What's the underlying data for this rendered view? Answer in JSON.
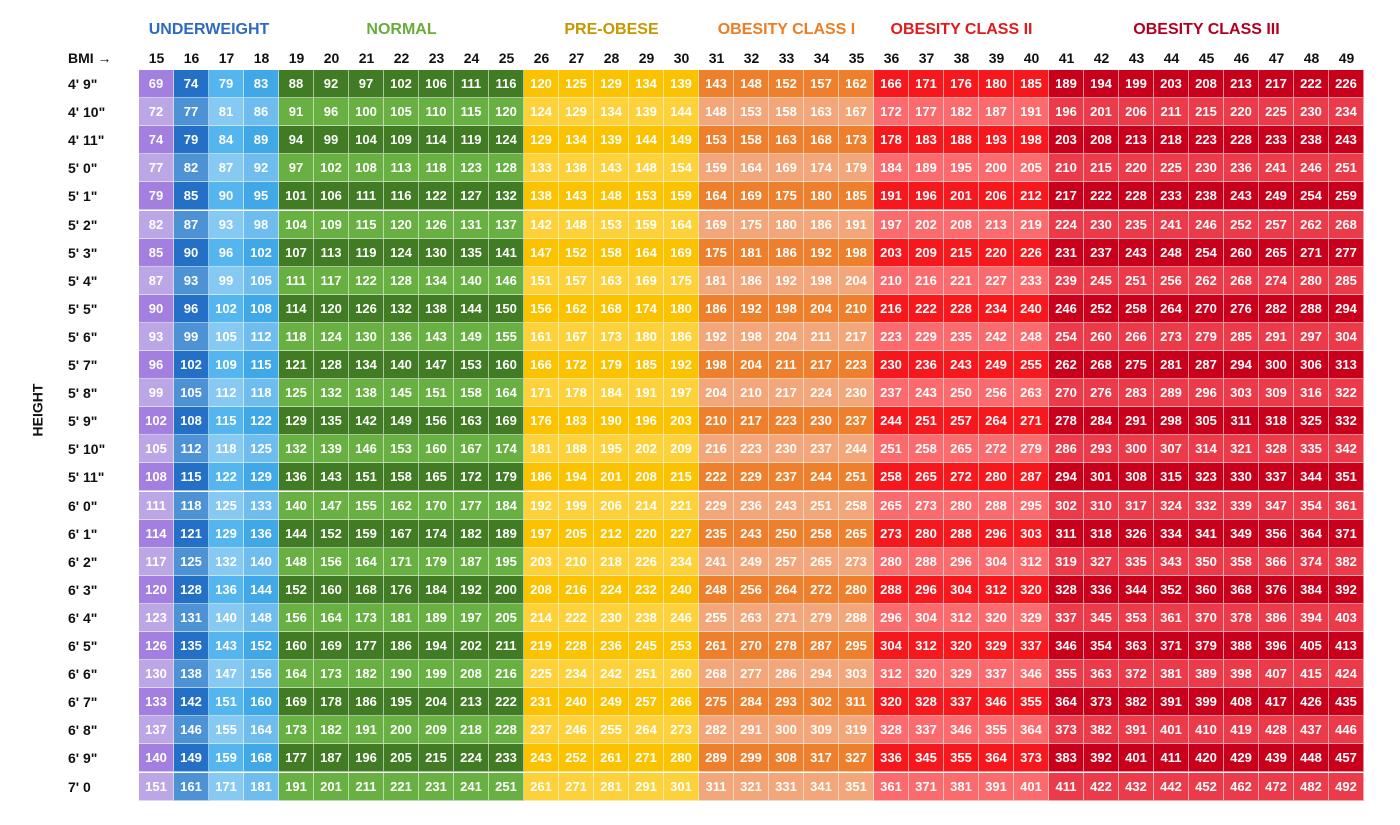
{
  "chart_data": {
    "type": "table",
    "bmi_label": "BMI →",
    "height_label": "HEIGHT",
    "bmi_values": [
      15,
      16,
      17,
      18,
      19,
      20,
      21,
      22,
      23,
      24,
      25,
      26,
      27,
      28,
      29,
      30,
      31,
      32,
      33,
      34,
      35,
      36,
      37,
      38,
      39,
      40,
      41,
      42,
      43,
      44,
      45,
      46,
      47,
      48,
      49
    ],
    "categories": [
      {
        "name": "UNDERWEIGHT",
        "bmi_from": 15,
        "bmi_to": 18,
        "color": "#2e6bbf"
      },
      {
        "name": "NORMAL",
        "bmi_from": 19,
        "bmi_to": 25,
        "color": "#6aab3c"
      },
      {
        "name": "PRE-OBESE",
        "bmi_from": 26,
        "bmi_to": 30,
        "color": "#c59800"
      },
      {
        "name": "OBESITY CLASS I",
        "bmi_from": 31,
        "bmi_to": 35,
        "color": "#ee7d22"
      },
      {
        "name": "OBESITY CLASS II",
        "bmi_from": 36,
        "bmi_to": 40,
        "color": "#e31a1c"
      },
      {
        "name": "OBESITY CLASS III",
        "bmi_from": 41,
        "bmi_to": 49,
        "color": "#b10021"
      }
    ],
    "column_colors": {
      "odd_rows": [
        "#a37fdf",
        "#2370c6",
        "#55b6ef",
        "#40a8e6",
        "#417b24",
        "#417b24",
        "#417b24",
        "#417b24",
        "#417b24",
        "#417b24",
        "#417b24",
        "#fbc200",
        "#fbc200",
        "#fbc200",
        "#fbc200",
        "#fbc200",
        "#ee7f2d",
        "#ee7f2d",
        "#ee7f2d",
        "#ee7f2d",
        "#ee7f2d",
        "#f7181d",
        "#f7181d",
        "#f7181d",
        "#f7181d",
        "#f7181d",
        "#c9001b",
        "#c9001b",
        "#c9001b",
        "#c9001b",
        "#c9001b",
        "#c9001b",
        "#c9001b",
        "#c9001b",
        "#c9001b"
      ],
      "even_rows": [
        "#bca7e6",
        "#4e92d6",
        "#86c9f2",
        "#6fbcee",
        "#69b043",
        "#69b043",
        "#69b043",
        "#69b043",
        "#69b043",
        "#69b043",
        "#69b043",
        "#fdd13a",
        "#fdd13a",
        "#fdd13a",
        "#fdd13a",
        "#fdd13a",
        "#f3a679",
        "#f3a679",
        "#f3a679",
        "#f3a679",
        "#f3a679",
        "#fb6b6e",
        "#fb6b6e",
        "#fb6b6e",
        "#fb6b6e",
        "#fb6b6e",
        "#eb3b4a",
        "#eb3b4a",
        "#eb3b4a",
        "#eb3b4a",
        "#eb3b4a",
        "#eb3b4a",
        "#eb3b4a",
        "#eb3b4a",
        "#eb3b4a"
      ]
    },
    "rows": [
      {
        "height": "4' 9\"",
        "weights": [
          69,
          74,
          79,
          83,
          88,
          92,
          97,
          102,
          106,
          111,
          116,
          120,
          125,
          129,
          134,
          139,
          143,
          148,
          152,
          157,
          162,
          166,
          171,
          176,
          180,
          185,
          189,
          194,
          199,
          203,
          208,
          213,
          217,
          222,
          226
        ]
      },
      {
        "height": "4' 10\"",
        "weights": [
          72,
          77,
          81,
          86,
          91,
          96,
          100,
          105,
          110,
          115,
          120,
          124,
          129,
          134,
          139,
          144,
          148,
          153,
          158,
          163,
          167,
          172,
          177,
          182,
          187,
          191,
          196,
          201,
          206,
          211,
          215,
          220,
          225,
          230,
          234
        ]
      },
      {
        "height": "4' 11\"",
        "weights": [
          74,
          79,
          84,
          89,
          94,
          99,
          104,
          109,
          114,
          119,
          124,
          129,
          134,
          139,
          144,
          149,
          153,
          158,
          163,
          168,
          173,
          178,
          183,
          188,
          193,
          198,
          203,
          208,
          213,
          218,
          223,
          228,
          233,
          238,
          243
        ]
      },
      {
        "height": "5' 0\"",
        "weights": [
          77,
          82,
          87,
          92,
          97,
          102,
          108,
          113,
          118,
          123,
          128,
          133,
          138,
          143,
          148,
          154,
          159,
          164,
          169,
          174,
          179,
          184,
          189,
          195,
          200,
          205,
          210,
          215,
          220,
          225,
          230,
          236,
          241,
          246,
          251
        ]
      },
      {
        "height": "5' 1\"",
        "weights": [
          79,
          85,
          90,
          95,
          101,
          106,
          111,
          116,
          122,
          127,
          132,
          138,
          143,
          148,
          153,
          159,
          164,
          169,
          175,
          180,
          185,
          191,
          196,
          201,
          206,
          212,
          217,
          222,
          228,
          233,
          238,
          243,
          249,
          254,
          259
        ]
      },
      {
        "height": "5' 2\"",
        "weights": [
          82,
          87,
          93,
          98,
          104,
          109,
          115,
          120,
          126,
          131,
          137,
          142,
          148,
          153,
          159,
          164,
          169,
          175,
          180,
          186,
          191,
          197,
          202,
          208,
          213,
          219,
          224,
          230,
          235,
          241,
          246,
          252,
          257,
          262,
          268
        ]
      },
      {
        "height": "5' 3\"",
        "weights": [
          85,
          90,
          96,
          102,
          107,
          113,
          119,
          124,
          130,
          135,
          141,
          147,
          152,
          158,
          164,
          169,
          175,
          181,
          186,
          192,
          198,
          203,
          209,
          215,
          220,
          226,
          231,
          237,
          243,
          248,
          254,
          260,
          265,
          271,
          277
        ]
      },
      {
        "height": "5' 4\"",
        "weights": [
          87,
          93,
          99,
          105,
          111,
          117,
          122,
          128,
          134,
          140,
          146,
          151,
          157,
          163,
          169,
          175,
          181,
          186,
          192,
          198,
          204,
          210,
          216,
          221,
          227,
          233,
          239,
          245,
          251,
          256,
          262,
          268,
          274,
          280,
          285
        ]
      },
      {
        "height": "5' 5\"",
        "weights": [
          90,
          96,
          102,
          108,
          114,
          120,
          126,
          132,
          138,
          144,
          150,
          156,
          162,
          168,
          174,
          180,
          186,
          192,
          198,
          204,
          210,
          216,
          222,
          228,
          234,
          240,
          246,
          252,
          258,
          264,
          270,
          276,
          282,
          288,
          294
        ]
      },
      {
        "height": "5' 6\"",
        "weights": [
          93,
          99,
          105,
          112,
          118,
          124,
          130,
          136,
          143,
          149,
          155,
          161,
          167,
          173,
          180,
          186,
          192,
          198,
          204,
          211,
          217,
          223,
          229,
          235,
          242,
          248,
          254,
          260,
          266,
          273,
          279,
          285,
          291,
          297,
          304
        ]
      },
      {
        "height": "5' 7\"",
        "weights": [
          96,
          102,
          109,
          115,
          121,
          128,
          134,
          140,
          147,
          153,
          160,
          166,
          172,
          179,
          185,
          192,
          198,
          204,
          211,
          217,
          223,
          230,
          236,
          243,
          249,
          255,
          262,
          268,
          275,
          281,
          287,
          294,
          300,
          306,
          313
        ]
      },
      {
        "height": "5' 8\"",
        "weights": [
          99,
          105,
          112,
          118,
          125,
          132,
          138,
          145,
          151,
          158,
          164,
          171,
          178,
          184,
          191,
          197,
          204,
          210,
          217,
          224,
          230,
          237,
          243,
          250,
          256,
          263,
          270,
          276,
          283,
          289,
          296,
          303,
          309,
          316,
          322
        ]
      },
      {
        "height": "5' 9\"",
        "weights": [
          102,
          108,
          115,
          122,
          129,
          135,
          142,
          149,
          156,
          163,
          169,
          176,
          183,
          190,
          196,
          203,
          210,
          217,
          223,
          230,
          237,
          244,
          251,
          257,
          264,
          271,
          278,
          284,
          291,
          298,
          305,
          311,
          318,
          325,
          332
        ]
      },
      {
        "height": "5' 10\"",
        "weights": [
          105,
          112,
          118,
          125,
          132,
          139,
          146,
          153,
          160,
          167,
          174,
          181,
          188,
          195,
          202,
          209,
          216,
          223,
          230,
          237,
          244,
          251,
          258,
          265,
          272,
          279,
          286,
          293,
          300,
          307,
          314,
          321,
          328,
          335,
          342
        ]
      },
      {
        "height": "5' 11\"",
        "weights": [
          108,
          115,
          122,
          129,
          136,
          143,
          151,
          158,
          165,
          172,
          179,
          186,
          194,
          201,
          208,
          215,
          222,
          229,
          237,
          244,
          251,
          258,
          265,
          272,
          280,
          287,
          294,
          301,
          308,
          315,
          323,
          330,
          337,
          344,
          351
        ]
      },
      {
        "height": "6' 0\"",
        "weights": [
          111,
          118,
          125,
          133,
          140,
          147,
          155,
          162,
          170,
          177,
          184,
          192,
          199,
          206,
          214,
          221,
          229,
          236,
          243,
          251,
          258,
          265,
          273,
          280,
          288,
          295,
          302,
          310,
          317,
          324,
          332,
          339,
          347,
          354,
          361
        ]
      },
      {
        "height": "6' 1\"",
        "weights": [
          114,
          121,
          129,
          136,
          144,
          152,
          159,
          167,
          174,
          182,
          189,
          197,
          205,
          212,
          220,
          227,
          235,
          243,
          250,
          258,
          265,
          273,
          280,
          288,
          296,
          303,
          311,
          318,
          326,
          334,
          341,
          349,
          356,
          364,
          371
        ]
      },
      {
        "height": "6' 2\"",
        "weights": [
          117,
          125,
          132,
          140,
          148,
          156,
          164,
          171,
          179,
          187,
          195,
          203,
          210,
          218,
          226,
          234,
          241,
          249,
          257,
          265,
          273,
          280,
          288,
          296,
          304,
          312,
          319,
          327,
          335,
          343,
          350,
          358,
          366,
          374,
          382
        ]
      },
      {
        "height": "6' 3\"",
        "weights": [
          120,
          128,
          136,
          144,
          152,
          160,
          168,
          176,
          184,
          192,
          200,
          208,
          216,
          224,
          232,
          240,
          248,
          256,
          264,
          272,
          280,
          288,
          296,
          304,
          312,
          320,
          328,
          336,
          344,
          352,
          360,
          368,
          376,
          384,
          392
        ]
      },
      {
        "height": "6' 4\"",
        "weights": [
          123,
          131,
          140,
          148,
          156,
          164,
          173,
          181,
          189,
          197,
          205,
          214,
          222,
          230,
          238,
          246,
          255,
          263,
          271,
          279,
          288,
          296,
          304,
          312,
          320,
          329,
          337,
          345,
          353,
          361,
          370,
          378,
          386,
          394,
          403
        ]
      },
      {
        "height": "6' 5\"",
        "weights": [
          126,
          135,
          143,
          152,
          160,
          169,
          177,
          186,
          194,
          202,
          211,
          219,
          228,
          236,
          245,
          253,
          261,
          270,
          278,
          287,
          295,
          304,
          312,
          320,
          329,
          337,
          346,
          354,
          363,
          371,
          379,
          388,
          396,
          405,
          413
        ]
      },
      {
        "height": "6' 6\"",
        "weights": [
          130,
          138,
          147,
          156,
          164,
          173,
          182,
          190,
          199,
          208,
          216,
          225,
          234,
          242,
          251,
          260,
          268,
          277,
          286,
          294,
          303,
          312,
          320,
          329,
          337,
          346,
          355,
          363,
          372,
          381,
          389,
          398,
          407,
          415,
          424
        ]
      },
      {
        "height": "6' 7\"",
        "weights": [
          133,
          142,
          151,
          160,
          169,
          178,
          186,
          195,
          204,
          213,
          222,
          231,
          240,
          249,
          257,
          266,
          275,
          284,
          293,
          302,
          311,
          320,
          328,
          337,
          346,
          355,
          364,
          373,
          382,
          391,
          399,
          408,
          417,
          426,
          435
        ]
      },
      {
        "height": "6' 8\"",
        "weights": [
          137,
          146,
          155,
          164,
          173,
          182,
          191,
          200,
          209,
          218,
          228,
          237,
          246,
          255,
          264,
          273,
          282,
          291,
          300,
          309,
          319,
          328,
          337,
          346,
          355,
          364,
          373,
          382,
          391,
          401,
          410,
          419,
          428,
          437,
          446
        ]
      },
      {
        "height": "6' 9\"",
        "weights": [
          140,
          149,
          159,
          168,
          177,
          187,
          196,
          205,
          215,
          224,
          233,
          243,
          252,
          261,
          271,
          280,
          289,
          299,
          308,
          317,
          327,
          336,
          345,
          355,
          364,
          373,
          383,
          392,
          401,
          411,
          420,
          429,
          439,
          448,
          457
        ]
      },
      {
        "height": "7' 0",
        "weights": [
          151,
          161,
          171,
          181,
          191,
          201,
          211,
          221,
          231,
          241,
          251,
          261,
          271,
          281,
          291,
          301,
          311,
          321,
          331,
          341,
          351,
          361,
          371,
          381,
          391,
          401,
          411,
          422,
          432,
          442,
          452,
          462,
          472,
          482,
          492
        ]
      }
    ]
  }
}
